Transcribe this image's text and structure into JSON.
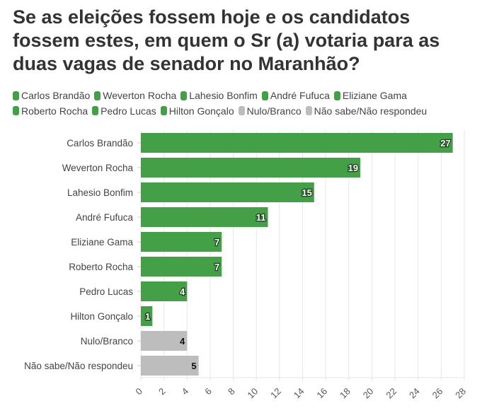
{
  "chart_data": {
    "type": "bar",
    "orientation": "horizontal",
    "title": "Se as eleições fossem hoje e os candidatos fossem estes, em quem o Sr (a) votaria para as duas vagas de senador no Maranhão?",
    "categories": [
      "Carlos Brandão",
      "Weverton Rocha",
      "Lahesio Bonfim",
      "André Fufuca",
      "Eliziane Gama",
      "Roberto Rocha",
      "Pedro Lucas",
      "Hilton Gonçalo",
      "Nulo/Branco",
      "Não sabe/Não respondeu"
    ],
    "values": [
      27,
      19,
      15,
      11,
      7,
      7,
      4,
      1,
      4,
      5
    ],
    "colors": [
      "#43a047",
      "#43a047",
      "#43a047",
      "#43a047",
      "#43a047",
      "#43a047",
      "#43a047",
      "#43a047",
      "#bdbdbd",
      "#bdbdbd"
    ],
    "xlim": [
      0,
      28
    ],
    "xticks": [
      0,
      2,
      4,
      6,
      8,
      10,
      12,
      14,
      16,
      18,
      20,
      22,
      24,
      26,
      28
    ],
    "grid": true,
    "legend_position": "top",
    "xlabel": "",
    "ylabel": ""
  }
}
